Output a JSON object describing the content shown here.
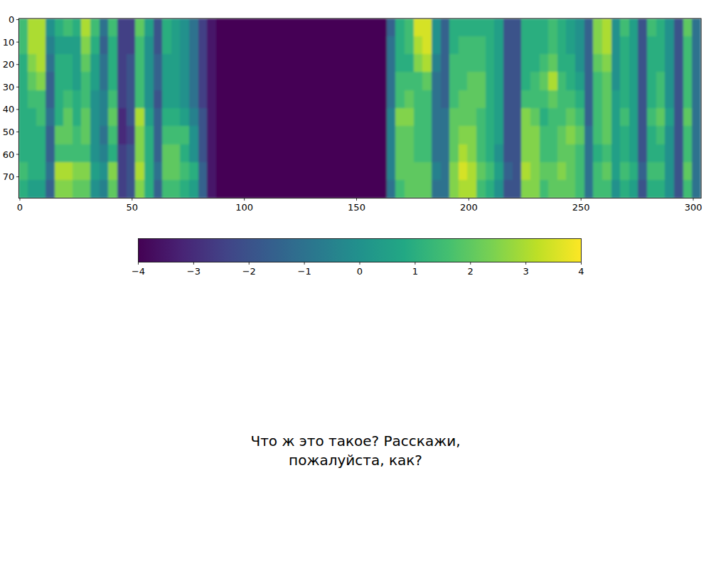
{
  "chart_data": {
    "type": "heatmap",
    "title": "Что ж это такое? Расскажи, пожалуйста, как?",
    "xlim": [
      -0.5,
      303.5
    ],
    "ylim": [
      79.5,
      -0.5
    ],
    "xticks": [
      0,
      50,
      100,
      150,
      200,
      250,
      300
    ],
    "yticks": [
      0,
      10,
      20,
      30,
      40,
      50,
      60,
      70
    ],
    "colorbar": {
      "range": [
        -4,
        4
      ],
      "ticks": [
        -4,
        -3,
        -2,
        -1,
        0,
        1,
        2,
        3,
        4
      ]
    },
    "cells": [
      [
        1.5,
        3,
        3,
        0,
        1,
        1.5,
        1,
        3,
        1.5,
        -1,
        1.5,
        -2.5,
        -2.5,
        2,
        0.5,
        -2,
        1,
        0.5,
        0,
        -1,
        -2.5,
        -3.5,
        -4,
        -4,
        -4,
        -4,
        -4,
        -4,
        -4,
        -4,
        -4,
        -4,
        -4,
        -4,
        -4,
        -4,
        -4,
        -4,
        -4,
        -4,
        -4,
        -1.5,
        1,
        1.5,
        3.5,
        3.5,
        0,
        -1.5,
        1,
        1,
        1,
        1,
        1,
        0.5,
        -2,
        -2,
        1,
        1,
        1,
        1.5,
        1,
        0.5,
        0,
        -1.5,
        2.5,
        3,
        0,
        1.5,
        0.5,
        -2,
        1.5,
        1,
        0,
        -2,
        2,
        -1
      ],
      [
        1.5,
        3,
        3,
        -0.5,
        0.5,
        0.5,
        0.5,
        2.5,
        1,
        -1.5,
        1,
        -2.5,
        -2.5,
        1.5,
        0,
        -2,
        1,
        0.5,
        0,
        -1,
        -2.5,
        -3.5,
        -4,
        -4,
        -4,
        -4,
        -4,
        -4,
        -4,
        -4,
        -4,
        -4,
        -4,
        -4,
        -4,
        -4,
        -4,
        -4,
        -4,
        -4,
        -4,
        -1,
        1,
        1.5,
        3,
        3.5,
        0,
        -1.5,
        1,
        1.5,
        1.5,
        1.5,
        1,
        0.5,
        -2,
        -2,
        1,
        1,
        1,
        1.5,
        1,
        0.5,
        0,
        -1.5,
        2.5,
        3,
        0,
        1,
        0.5,
        -2,
        1,
        1,
        0,
        -2,
        1.5,
        -1
      ],
      [
        1,
        2.5,
        3,
        -1,
        1,
        1,
        0.5,
        2,
        0.5,
        -1,
        1,
        -2.5,
        -2,
        1.5,
        0,
        -1.5,
        0.5,
        0.5,
        0,
        -1,
        -2.5,
        -3.5,
        -4,
        -4,
        -4,
        -4,
        -4,
        -4,
        -4,
        -4,
        -4,
        -4,
        -4,
        -4,
        -4,
        -4,
        -4,
        -4,
        -4,
        -4,
        -4,
        -1,
        1,
        1,
        2.5,
        3,
        -0.5,
        -1.5,
        1.5,
        1.5,
        1.5,
        1.5,
        1,
        0.5,
        -2,
        -2,
        1,
        1,
        1.5,
        2,
        1,
        1,
        0,
        -1.5,
        2,
        2.5,
        0,
        1,
        0.5,
        -2,
        1,
        1,
        0,
        -2,
        1.5,
        -1
      ],
      [
        1,
        2,
        2.5,
        -1.5,
        1,
        1,
        0.5,
        1.5,
        0.5,
        -1,
        1,
        -2.5,
        -2,
        1.5,
        0,
        -1.5,
        0.5,
        0.5,
        0,
        -1,
        -2.5,
        -3.5,
        -4,
        -4,
        -4,
        -4,
        -4,
        -4,
        -4,
        -4,
        -4,
        -4,
        -4,
        -4,
        -4,
        -4,
        -4,
        -4,
        -4,
        -4,
        -4,
        -1,
        1.5,
        1.5,
        1.5,
        2,
        -1,
        -1.5,
        1.5,
        1.5,
        2,
        2,
        1,
        0.5,
        -2,
        -2,
        1,
        1.5,
        2,
        3,
        1.5,
        1,
        0.5,
        -1.5,
        1.5,
        2,
        0,
        1,
        0.5,
        -2,
        1,
        1.5,
        0,
        -2,
        1.5,
        -1
      ],
      [
        1,
        1.5,
        1.5,
        -1.5,
        1,
        1.5,
        1,
        1.5,
        0,
        -0.5,
        1.5,
        -2.5,
        -2,
        1.5,
        0,
        -2,
        0.5,
        0.5,
        0,
        -1,
        -2.5,
        -3.5,
        -4,
        -4,
        -4,
        -4,
        -4,
        -4,
        -4,
        -4,
        -4,
        -4,
        -4,
        -4,
        -4,
        -4,
        -4,
        -4,
        -4,
        -4,
        -4,
        -1,
        1.5,
        2,
        1.5,
        1.5,
        -1,
        -1.5,
        1.5,
        2,
        2,
        2,
        1,
        0.5,
        -2,
        -2,
        1.5,
        1.5,
        1.5,
        2,
        1.5,
        1.5,
        1,
        -1.5,
        1.5,
        2,
        0.5,
        1,
        0.5,
        -2,
        1,
        1.5,
        0,
        -2,
        1.5,
        -1
      ],
      [
        1,
        1,
        1.5,
        -1,
        1,
        2,
        1,
        2,
        0,
        -0.5,
        2,
        -3,
        -2,
        3,
        0.5,
        -1.5,
        1,
        1,
        0.5,
        -0.5,
        -2,
        -3.5,
        -4,
        -4,
        -4,
        -4,
        -4,
        -4,
        -4,
        -4,
        -4,
        -4,
        -4,
        -4,
        -4,
        -4,
        -4,
        -4,
        -4,
        -4,
        -4,
        -0.5,
        2.5,
        2.5,
        1.5,
        1.5,
        -1,
        -1,
        2,
        2,
        2,
        1.5,
        1,
        0.5,
        -2,
        -2,
        2.5,
        2,
        1,
        1.5,
        1.5,
        2,
        1.5,
        -1.5,
        1.5,
        2,
        0.5,
        1.5,
        0.5,
        -2,
        1.5,
        2,
        0.5,
        -2,
        2,
        -1
      ],
      [
        1,
        1,
        1,
        -1.5,
        2,
        2,
        1.5,
        2,
        0,
        -1,
        1.5,
        -3,
        -2.5,
        2.5,
        1,
        -1.5,
        1.5,
        1.5,
        1.5,
        0,
        -2,
        -3.5,
        -4,
        -4,
        -4,
        -4,
        -4,
        -4,
        -4,
        -4,
        -4,
        -4,
        -4,
        -4,
        -4,
        -4,
        -4,
        -4,
        -4,
        -4,
        -4,
        -0.5,
        2,
        2,
        1.5,
        1.5,
        -1,
        -1,
        2,
        2.5,
        2.5,
        1.5,
        1,
        0.5,
        -2,
        -2,
        2.5,
        2.5,
        1.5,
        1.5,
        2,
        2.5,
        2,
        -1,
        1.5,
        2,
        0.5,
        1,
        0.5,
        -2,
        1,
        1.5,
        0,
        -2,
        1.5,
        -1
      ],
      [
        1,
        1,
        1,
        -1.5,
        1.5,
        1.5,
        1.5,
        1.5,
        0,
        -0.5,
        1,
        -2.5,
        -2,
        2.5,
        1,
        -1.5,
        2,
        2,
        1,
        0,
        -2,
        -3.5,
        -4,
        -4,
        -4,
        -4,
        -4,
        -4,
        -4,
        -4,
        -4,
        -4,
        -4,
        -4,
        -4,
        -4,
        -4,
        -4,
        -4,
        -4,
        -4,
        -0.5,
        2,
        2,
        1.5,
        1.5,
        -1,
        -1,
        2,
        3,
        2.5,
        1.5,
        1,
        0,
        -2,
        -2,
        2.5,
        2.5,
        1.5,
        1.5,
        2,
        2,
        1.5,
        -1,
        1,
        1.5,
        0.5,
        1,
        0.5,
        -2,
        1,
        1,
        0,
        -2,
        1.5,
        -1
      ],
      [
        1.5,
        1,
        1,
        -1,
        3,
        3,
        2.5,
        2.5,
        0.5,
        0,
        2.5,
        -2.5,
        -2,
        3,
        1,
        -1,
        2,
        2,
        1.5,
        1,
        -1.5,
        -3.5,
        -4,
        -4,
        -4,
        -4,
        -4,
        -4,
        -4,
        -4,
        -4,
        -4,
        -4,
        -4,
        -4,
        -4,
        -4,
        -4,
        -4,
        -4,
        -4,
        -0.5,
        2,
        2,
        2,
        2,
        -0.5,
        -1,
        2.5,
        3.5,
        3,
        2,
        1.5,
        0.5,
        -1.5,
        -2,
        3,
        2.5,
        2,
        2,
        2.5,
        2,
        1.5,
        -1,
        1.5,
        2,
        0.5,
        1.5,
        1,
        -1.5,
        1.5,
        1.5,
        0,
        -2,
        2,
        -1
      ],
      [
        1,
        0.5,
        0.5,
        -1.5,
        2.5,
        2.5,
        2,
        2,
        0,
        -0.5,
        2,
        -2.5,
        -2,
        2.5,
        1,
        -1.5,
        1.5,
        1.5,
        1,
        0.5,
        -1.5,
        -3.5,
        -4,
        -4,
        -4,
        -4,
        -4,
        -4,
        -4,
        -4,
        -4,
        -4,
        -4,
        -4,
        -4,
        -4,
        -4,
        -4,
        -4,
        -4,
        -4,
        -1,
        1.5,
        2,
        2,
        2,
        -1,
        -1,
        2.5,
        3,
        3,
        1.5,
        1,
        0,
        -2,
        -2,
        2.5,
        2.5,
        1.5,
        2,
        2,
        2,
        1.5,
        -1,
        1.5,
        1.5,
        0,
        1,
        0.5,
        -2,
        1,
        1,
        0,
        -2,
        1.5,
        -1
      ]
    ]
  }
}
